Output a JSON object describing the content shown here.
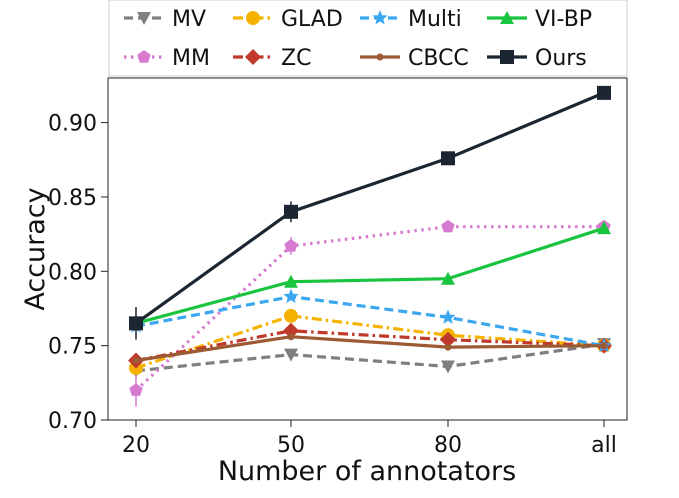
{
  "chart_data": {
    "type": "line",
    "title": "",
    "xlabel": "Number of annotators",
    "ylabel": "Accuracy",
    "categories": [
      "20",
      "50",
      "80",
      "all"
    ],
    "ylim": [
      0.7,
      0.93
    ],
    "yticks": [
      0.7,
      0.75,
      0.8,
      0.85,
      0.9
    ],
    "ytick_labels": [
      "0.70",
      "0.75",
      "0.80",
      "0.85",
      "0.90"
    ],
    "grid": false,
    "legend_position": "top",
    "series": [
      {
        "name": "MV",
        "color": "#7f7f7f",
        "dash": "dashed",
        "marker": "triangle-down",
        "values": [
          0.733,
          0.744,
          0.736,
          0.751
        ]
      },
      {
        "name": "MM",
        "color": "#d67bd0",
        "dash": "dotted",
        "marker": "pentagon",
        "values": [
          0.72,
          0.817,
          0.83,
          0.83
        ]
      },
      {
        "name": "GLAD",
        "color": "#f5b300",
        "dash": "dashdot",
        "marker": "circle",
        "values": [
          0.735,
          0.77,
          0.757,
          0.75
        ]
      },
      {
        "name": "ZC",
        "color": "#c0392b",
        "dash": "dashdot",
        "marker": "diamond",
        "values": [
          0.74,
          0.76,
          0.754,
          0.75
        ]
      },
      {
        "name": "Multi",
        "color": "#3ba7f0",
        "dash": "dashed",
        "marker": "star",
        "values": [
          0.763,
          0.783,
          0.769,
          0.75
        ]
      },
      {
        "name": "CBCC",
        "color": "#9c5a34",
        "dash": "solid",
        "marker": "small-circle",
        "values": [
          0.74,
          0.756,
          0.749,
          0.75
        ]
      },
      {
        "name": "VI-BP",
        "color": "#19c43f",
        "dash": "solid",
        "marker": "triangle-up",
        "values": [
          0.765,
          0.793,
          0.795,
          0.829
        ]
      },
      {
        "name": "Ours",
        "color": "#1b2632",
        "dash": "solid",
        "marker": "square",
        "values": [
          0.765,
          0.84,
          0.876,
          0.92
        ]
      }
    ]
  }
}
